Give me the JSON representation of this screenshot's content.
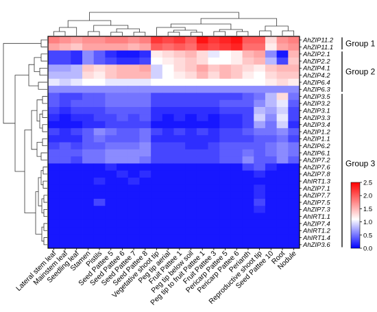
{
  "chart_data": {
    "type": "heatmap",
    "title": "",
    "xlabel": "",
    "ylabel": "",
    "columns": [
      "Lateral stem leaf",
      "Mainstem leaf",
      "Seedling leaf",
      "Stamen",
      "Pistils",
      "Seed Pattee 5",
      "Seed Pattee 6",
      "Seed Pattee 7",
      "Seed Pattee 8",
      "Vegetative shoot tip",
      "Peg tip aerial",
      "Fruit Pattee 1",
      "Peg tip below soil",
      "Peg tip to fruit Pattee 1",
      "Fruit Pattee 3",
      "Pericarp Pattee 5",
      "Pericarp Pattee 6",
      "Perianth",
      "Reproductive shoot tip",
      "Seed Pattee 10",
      "Root",
      "Nodule"
    ],
    "rows": [
      "AhZIP11.2",
      "AhZIP11.1",
      "AhZIP2.1",
      "AhZIP2.2",
      "AhZIP4.1",
      "AhZIP4.2",
      "AhZIP6.4",
      "AhZIP6.3",
      "AhZIP3.5",
      "AhZIP3.2",
      "AhZIP3.1",
      "AhZIP3.3",
      "AhZIP3.4",
      "AhZIP1.2",
      "AhZIP1.1",
      "AhZIP6.2",
      "AhZIP6.1",
      "AhZIP7.2",
      "AhZIP7.6",
      "AhZIP7.8",
      "AhIRT1.3",
      "AhZIP7.1",
      "AhZIP7.7",
      "AhZIP7.5",
      "AhZIP7.3",
      "AhIRT1.1",
      "AhZIP7.4",
      "AhIRT1.2",
      "AhIRT1.4",
      "AhZIP3.6"
    ],
    "values": [
      [
        1.8,
        1.7,
        1.6,
        1.7,
        1.7,
        1.8,
        1.8,
        1.7,
        1.8,
        2.2,
        2.1,
        2.2,
        2.0,
        2.4,
        2.2,
        2.3,
        2.4,
        2.0,
        2.0,
        1.3,
        1.7,
        1.8
      ],
      [
        1.6,
        1.5,
        1.4,
        1.6,
        1.6,
        1.6,
        1.6,
        1.5,
        1.6,
        2.0,
        1.9,
        2.0,
        1.9,
        2.2,
        2.1,
        2.2,
        2.3,
        1.9,
        1.9,
        1.2,
        1.6,
        1.7
      ],
      [
        0.3,
        0.3,
        0.2,
        0.6,
        0.4,
        0.2,
        0.1,
        0.1,
        0.2,
        1.2,
        1.3,
        1.4,
        1.5,
        1.3,
        1.0,
        1.1,
        1.2,
        1.5,
        1.6,
        0.6,
        0.1,
        1.5
      ],
      [
        0.3,
        0.3,
        0.2,
        0.6,
        0.4,
        0.3,
        0.2,
        0.2,
        0.3,
        1.1,
        1.2,
        1.3,
        1.4,
        1.3,
        1.1,
        1.1,
        1.2,
        1.4,
        1.5,
        0.8,
        0.3,
        1.4
      ],
      [
        0.7,
        0.7,
        0.8,
        1.4,
        1.3,
        1.4,
        1.5,
        1.5,
        1.6,
        0.9,
        1.1,
        1.3,
        1.4,
        1.6,
        1.4,
        1.5,
        1.4,
        1.3,
        1.2,
        1.4,
        1.5,
        1.5
      ],
      [
        0.8,
        0.8,
        0.8,
        1.3,
        1.2,
        1.4,
        1.5,
        1.5,
        1.5,
        0.9,
        1.1,
        1.2,
        1.3,
        1.5,
        1.3,
        1.5,
        1.4,
        1.2,
        1.1,
        1.3,
        1.4,
        1.4
      ],
      [
        1.0,
        0.9,
        1.0,
        1.1,
        1.1,
        1.0,
        1.0,
        1.0,
        1.0,
        1.1,
        1.1,
        1.1,
        1.1,
        1.1,
        1.1,
        1.1,
        1.1,
        1.1,
        1.1,
        1.2,
        1.3,
        1.2
      ],
      [
        0.6,
        0.6,
        0.6,
        0.6,
        0.6,
        0.6,
        0.6,
        0.6,
        0.6,
        0.6,
        0.6,
        0.6,
        0.6,
        0.6,
        0.6,
        0.6,
        0.6,
        0.6,
        0.6,
        0.6,
        0.6,
        0.6
      ],
      [
        0.4,
        0.3,
        0.3,
        0.4,
        0.4,
        0.5,
        0.5,
        0.5,
        0.5,
        0.3,
        0.3,
        0.3,
        0.3,
        0.3,
        0.3,
        0.3,
        0.3,
        0.4,
        0.5,
        0.8,
        1.3,
        0.5
      ],
      [
        0.4,
        0.3,
        0.4,
        0.4,
        0.4,
        0.5,
        0.5,
        0.5,
        0.5,
        0.3,
        0.3,
        0.3,
        0.3,
        0.3,
        0.3,
        0.4,
        0.4,
        0.4,
        0.6,
        0.8,
        1.0,
        0.4
      ],
      [
        0.3,
        0.2,
        0.3,
        0.3,
        0.3,
        0.4,
        0.4,
        0.4,
        0.4,
        0.2,
        0.2,
        0.2,
        0.2,
        0.2,
        0.2,
        0.3,
        0.3,
        0.3,
        0.8,
        0.7,
        0.9,
        0.3
      ],
      [
        0.2,
        0.1,
        0.2,
        0.2,
        0.3,
        0.3,
        0.4,
        0.3,
        0.4,
        0.2,
        0.1,
        0.2,
        0.1,
        0.2,
        0.1,
        0.2,
        0.2,
        0.3,
        0.9,
        0.6,
        1.0,
        0.3
      ],
      [
        0.1,
        0.1,
        0.1,
        0.2,
        0.2,
        0.3,
        0.3,
        0.3,
        0.3,
        0.1,
        0.1,
        0.1,
        0.1,
        0.1,
        0.1,
        0.2,
        0.2,
        0.3,
        0.7,
        0.5,
        0.9,
        0.2
      ],
      [
        0.3,
        0.2,
        0.3,
        0.4,
        0.6,
        0.5,
        0.4,
        0.4,
        0.5,
        0.3,
        0.2,
        0.3,
        0.2,
        0.3,
        0.2,
        0.3,
        0.3,
        0.4,
        0.5,
        0.5,
        0.6,
        0.4
      ],
      [
        0.2,
        0.2,
        0.2,
        0.4,
        0.5,
        0.4,
        0.4,
        0.4,
        0.5,
        0.2,
        0.2,
        0.2,
        0.2,
        0.2,
        0.2,
        0.3,
        0.3,
        0.3,
        0.4,
        0.4,
        0.5,
        0.3
      ],
      [
        0.3,
        0.4,
        0.3,
        0.4,
        0.4,
        0.5,
        0.5,
        0.5,
        0.6,
        0.3,
        0.3,
        0.3,
        0.2,
        0.2,
        0.3,
        0.4,
        0.4,
        0.4,
        0.4,
        0.5,
        0.6,
        0.5
      ],
      [
        0.4,
        0.4,
        0.4,
        0.5,
        0.5,
        0.6,
        0.6,
        0.6,
        0.6,
        0.3,
        0.3,
        0.3,
        0.3,
        0.3,
        0.3,
        0.4,
        0.4,
        0.5,
        0.4,
        0.5,
        0.6,
        0.5
      ],
      [
        0.4,
        0.4,
        0.3,
        0.5,
        0.5,
        0.6,
        0.6,
        0.6,
        0.5,
        0.3,
        0.3,
        0.3,
        0.3,
        0.3,
        0.3,
        0.4,
        0.4,
        0.6,
        0.4,
        0.4,
        0.6,
        0.4
      ],
      [
        0.1,
        0.1,
        0.1,
        0.1,
        0.1,
        0.2,
        0.1,
        0.1,
        0.1,
        0.1,
        0.1,
        0.1,
        0.1,
        0.1,
        0.1,
        0.1,
        0.1,
        0.3,
        0.4,
        0.2,
        0.1,
        0.1
      ],
      [
        0.1,
        0.1,
        0.1,
        0.1,
        0.1,
        0.1,
        0.2,
        0.1,
        0.2,
        0.1,
        0.1,
        0.1,
        0.1,
        0.1,
        0.1,
        0.1,
        0.1,
        0.1,
        0.2,
        0.1,
        0.1,
        0.1
      ],
      [
        0.1,
        0.1,
        0.1,
        0.1,
        0.2,
        0.1,
        0.1,
        0.2,
        0.1,
        0.1,
        0.1,
        0.1,
        0.1,
        0.1,
        0.1,
        0.1,
        0.1,
        0.1,
        0.1,
        0.1,
        0.1,
        0.1
      ],
      [
        0.1,
        0.1,
        0.1,
        0.1,
        0.1,
        0.1,
        0.1,
        0.1,
        0.1,
        0.1,
        0.1,
        0.1,
        0.1,
        0.1,
        0.1,
        0.1,
        0.1,
        0.1,
        0.2,
        0.1,
        0.1,
        0.1
      ],
      [
        0.1,
        0.1,
        0.1,
        0.1,
        0.1,
        0.1,
        0.1,
        0.1,
        0.1,
        0.1,
        0.1,
        0.1,
        0.1,
        0.1,
        0.1,
        0.1,
        0.1,
        0.1,
        0.2,
        0.1,
        0.1,
        0.1
      ],
      [
        0.1,
        0.1,
        0.1,
        0.1,
        0.3,
        0.1,
        0.1,
        0.1,
        0.1,
        0.1,
        0.1,
        0.1,
        0.1,
        0.1,
        0.1,
        0.1,
        0.1,
        0.1,
        0.3,
        0.1,
        0.1,
        0.1
      ],
      [
        0.1,
        0.1,
        0.1,
        0.1,
        0.1,
        0.1,
        0.1,
        0.1,
        0.1,
        0.1,
        0.1,
        0.1,
        0.1,
        0.1,
        0.1,
        0.1,
        0.1,
        0.1,
        0.2,
        0.1,
        0.1,
        0.1
      ],
      [
        0.1,
        0.1,
        0.1,
        0.1,
        0.1,
        0.1,
        0.1,
        0.1,
        0.1,
        0.1,
        0.1,
        0.1,
        0.1,
        0.1,
        0.1,
        0.1,
        0.1,
        0.1,
        0.1,
        0.1,
        0.1,
        0.1
      ],
      [
        0.1,
        0.1,
        0.1,
        0.1,
        0.1,
        0.1,
        0.1,
        0.1,
        0.1,
        0.1,
        0.1,
        0.1,
        0.1,
        0.1,
        0.1,
        0.1,
        0.1,
        0.1,
        0.1,
        0.1,
        0.1,
        0.1
      ],
      [
        0.1,
        0.1,
        0.1,
        0.1,
        0.1,
        0.1,
        0.1,
        0.1,
        0.1,
        0.1,
        0.1,
        0.1,
        0.1,
        0.1,
        0.1,
        0.1,
        0.1,
        0.1,
        0.1,
        0.1,
        0.1,
        0.1
      ],
      [
        0.1,
        0.1,
        0.1,
        0.1,
        0.1,
        0.1,
        0.1,
        0.1,
        0.1,
        0.1,
        0.1,
        0.1,
        0.1,
        0.1,
        0.1,
        0.1,
        0.1,
        0.1,
        0.1,
        0.1,
        0.1,
        0.1
      ],
      [
        0.1,
        0.1,
        0.1,
        0.1,
        0.1,
        0.1,
        0.1,
        0.1,
        0.1,
        0.1,
        0.1,
        0.1,
        0.1,
        0.1,
        0.1,
        0.1,
        0.1,
        0.1,
        0.1,
        0.1,
        0.1,
        0.1
      ]
    ],
    "color_scale": {
      "min": 0.0,
      "mid": 1.1,
      "max": 2.5,
      "low_color": "#0000ff",
      "mid_color": "#ffffff",
      "high_color": "#ff0000",
      "ticks": [
        "0.0",
        "0.5",
        "1.0",
        "1.5",
        "2.0",
        "2.5"
      ]
    },
    "groups": [
      {
        "label": "Group 1",
        "first_row": 0,
        "last_row": 1
      },
      {
        "label": "Group 2",
        "first_row": 2,
        "last_row": 7
      },
      {
        "label": "Group 3",
        "first_row": 8,
        "last_row": 29
      }
    ],
    "grid": false
  }
}
